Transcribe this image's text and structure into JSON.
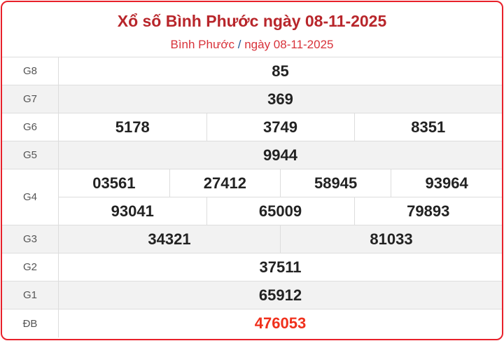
{
  "header": {
    "title": "Xổ số Bình Phước ngày 08-11-2025",
    "breadcrumb_province": "Bình Phước",
    "breadcrumb_separator": "/",
    "breadcrumb_date": "ngày 08-11-2025"
  },
  "prizes": [
    {
      "label": "G8",
      "numbers": [
        "85"
      ]
    },
    {
      "label": "G7",
      "numbers": [
        "369"
      ]
    },
    {
      "label": "G6",
      "numbers": [
        "5178",
        "3749",
        "8351"
      ]
    },
    {
      "label": "G5",
      "numbers": [
        "9944"
      ]
    },
    {
      "label": "G4",
      "numbers": [
        "03561",
        "27412",
        "58945",
        "93964",
        "93041",
        "65009",
        "79893"
      ]
    },
    {
      "label": "G3",
      "numbers": [
        "34321",
        "81033"
      ]
    },
    {
      "label": "G2",
      "numbers": [
        "37511"
      ]
    },
    {
      "label": "G1",
      "numbers": [
        "65912"
      ]
    },
    {
      "label": "ĐB",
      "numbers": [
        "476053"
      ]
    }
  ],
  "colors": {
    "accent": "#e8202a",
    "title": "#b8262b",
    "special_prize": "#f0301c"
  }
}
